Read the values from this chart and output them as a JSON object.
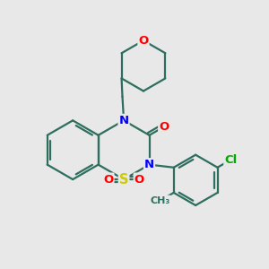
{
  "bg_color": "#e8e8e8",
  "bond_color": "#2d6e5e",
  "bond_width": 1.6,
  "atom_colors": {
    "N": "#0000ff",
    "O": "#ff0000",
    "S": "#cccc00",
    "Cl": "#00aa00",
    "C": "#2d6e5e"
  },
  "font_size": 9.5
}
